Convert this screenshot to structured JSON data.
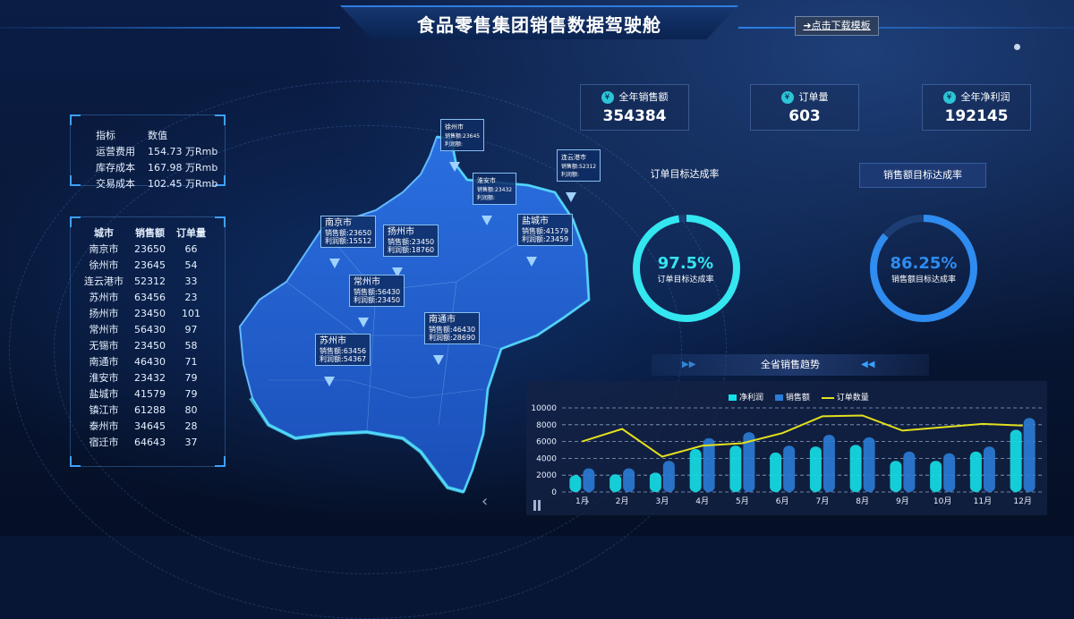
{
  "header": {
    "title": "食品零售集团销售数据驾驶舱",
    "download_label": "➜点击下载模板"
  },
  "indicators": {
    "headers": [
      "指标",
      "数值"
    ],
    "rows": [
      {
        "name": "运营费用",
        "value": "154.73 万Rmb"
      },
      {
        "name": "库存成本",
        "value": "167.98 万Rmb"
      },
      {
        "name": "交易成本",
        "value": "102.45 万Rmb"
      }
    ]
  },
  "city_table": {
    "headers": [
      "城市",
      "销售额",
      "订单量"
    ],
    "rows": [
      [
        "南京市",
        "23650",
        "66"
      ],
      [
        "徐州市",
        "23645",
        "54"
      ],
      [
        "连云港市",
        "52312",
        "33"
      ],
      [
        "苏州市",
        "63456",
        "23"
      ],
      [
        "扬州市",
        "23450",
        "101"
      ],
      [
        "常州市",
        "56430",
        "97"
      ],
      [
        "无锡市",
        "23450",
        "58"
      ],
      [
        "南通市",
        "46430",
        "71"
      ],
      [
        "淮安市",
        "23432",
        "79"
      ],
      [
        "盐城市",
        "41579",
        "79"
      ],
      [
        "镇江市",
        "61288",
        "80"
      ],
      [
        "泰州市",
        "34645",
        "28"
      ],
      [
        "宿迁市",
        "64643",
        "37"
      ]
    ]
  },
  "kpis": [
    {
      "label": "全年销售额",
      "value": "354384"
    },
    {
      "label": "订单量",
      "value": "603"
    },
    {
      "label": "全年净利润",
      "value": "192145"
    }
  ],
  "gauges": [
    {
      "title": "订单目标达成率",
      "pct_text": "97.5%",
      "sub": "订单目标达成率",
      "value": 0.975,
      "color": "#33e6f0"
    },
    {
      "title": "销售额目标达成率",
      "pct_text": "86.25%",
      "sub": "销售额目标达成率",
      "value": 0.8625,
      "color": "#2f8cf0"
    }
  ],
  "map_labels": [
    {
      "title": "徐州市",
      "l1": "销售额:23645",
      "l2": "利润额:"
    },
    {
      "title": "连云港市",
      "l1": "销售额:52312",
      "l2": "利润额:"
    },
    {
      "title": "淮安市",
      "l1": "销售额:23432",
      "l2": "利润额:"
    },
    {
      "title": "南京市",
      "l1": "销售额:23650",
      "l2": "利润额:15512"
    },
    {
      "title": "扬州市",
      "l1": "销售额:23450",
      "l2": "利润额:18760"
    },
    {
      "title": "盐城市",
      "l1": "销售额:41579",
      "l2": "利润额:23459"
    },
    {
      "title": "常州市",
      "l1": "销售额:56430",
      "l2": "利润额:23450"
    },
    {
      "title": "南通市",
      "l1": "销售额:46430",
      "l2": "利润额:28690"
    },
    {
      "title": "苏州市",
      "l1": "销售额:63456",
      "l2": "利润额:54367"
    }
  ],
  "trend": {
    "title": "全省销售趋势"
  },
  "chart_data": {
    "type": "bar",
    "categories": [
      "1月",
      "2月",
      "3月",
      "4月",
      "5月",
      "6月",
      "7月",
      "8月",
      "9月",
      "10月",
      "11月",
      "12月"
    ],
    "series": [
      {
        "name": "净利润",
        "type": "bar",
        "values": [
          2000,
          2100,
          2300,
          5100,
          5500,
          4700,
          5400,
          5600,
          3700,
          3700,
          4800,
          7400
        ]
      },
      {
        "name": "销售额",
        "type": "bar",
        "values": [
          2800,
          2800,
          3700,
          6400,
          7100,
          5500,
          6800,
          6500,
          4800,
          4600,
          5400,
          8800
        ]
      },
      {
        "name": "订单数量",
        "type": "line",
        "values": [
          6000,
          7500,
          4200,
          5500,
          5800,
          7000,
          9000,
          9100,
          7300,
          7700,
          8100,
          7900
        ]
      }
    ],
    "ylim": [
      0,
      10000
    ],
    "yticks": [
      "0",
      "2000",
      "4000",
      "6000",
      "8000",
      "10000"
    ],
    "grid": true,
    "legend": "top"
  },
  "colors": {
    "net_profit": "#15e0e8",
    "sales": "#2b7cd6",
    "orders": "#e3e01d"
  }
}
